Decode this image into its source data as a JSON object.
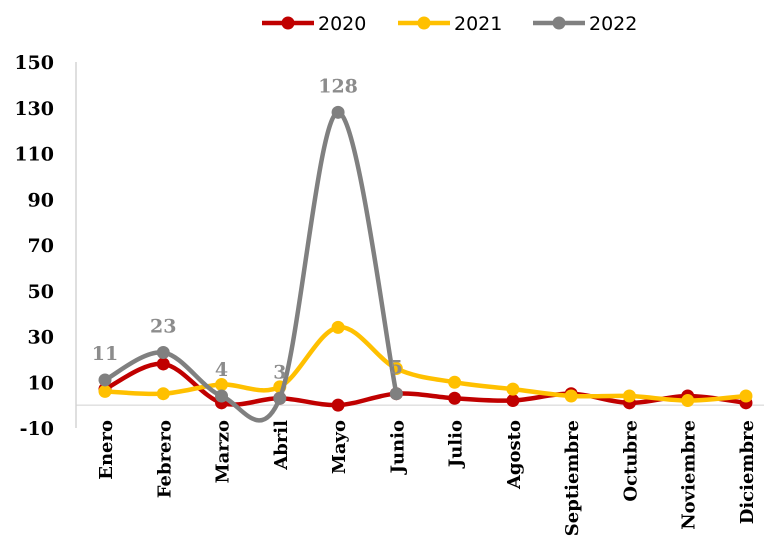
{
  "chart_data": {
    "type": "line",
    "title": "",
    "xlabel": "",
    "ylabel": "",
    "categories": [
      "Enero",
      "Febrero",
      "Marzo",
      "Abril",
      "Mayo",
      "Junio",
      "Julio",
      "Agosto",
      "Septiembre",
      "Octubre",
      "Noviembre",
      "Diciembre"
    ],
    "yticks": [
      "150",
      "130",
      "110",
      "90",
      "70",
      "50",
      "30",
      "10",
      "-10"
    ],
    "ylim": [
      -10,
      150
    ],
    "grid": false,
    "legend_position": "top",
    "series": [
      {
        "name": "2020",
        "color": "#c00000",
        "values": [
          7,
          18,
          1,
          3,
          0,
          5,
          3,
          2,
          5,
          1,
          4,
          1
        ]
      },
      {
        "name": "2021",
        "color": "#ffc000",
        "values": [
          6,
          5,
          9,
          8,
          34,
          16,
          10,
          7,
          4,
          4,
          2,
          4
        ]
      },
      {
        "name": "2022",
        "color": "#808080",
        "values": [
          11,
          23,
          4,
          3,
          128,
          5,
          null,
          null,
          null,
          null,
          null,
          null
        ],
        "labels": [
          "11",
          "23",
          "4",
          "3",
          "128",
          "5"
        ]
      }
    ]
  }
}
